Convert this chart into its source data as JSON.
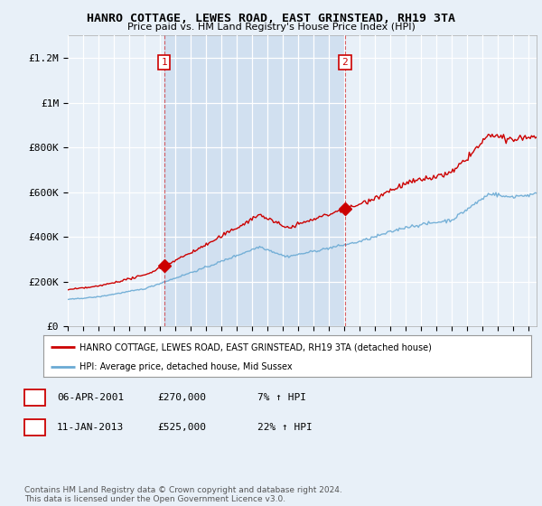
{
  "title": "HANRO COTTAGE, LEWES ROAD, EAST GRINSTEAD, RH19 3TA",
  "subtitle": "Price paid vs. HM Land Registry's House Price Index (HPI)",
  "bg_color": "#e8f0f8",
  "plot_bg_color": "#e8f0f8",
  "shade_color": "#ccdcee",
  "hpi_color": "#6aaad4",
  "price_color": "#cc0000",
  "dashed_line_color": "#cc0000",
  "ylim": [
    0,
    1300000
  ],
  "yticks": [
    0,
    200000,
    400000,
    600000,
    800000,
    1000000,
    1200000
  ],
  "ytick_labels": [
    "£0",
    "£200K",
    "£400K",
    "£600K",
    "£800K",
    "£1M",
    "£1.2M"
  ],
  "sale1_year": 2001.27,
  "sale1_price": 270000,
  "sale1_label": "1",
  "sale2_year": 2013.03,
  "sale2_price": 525000,
  "sale2_label": "2",
  "legend_line1": "HANRO COTTAGE, LEWES ROAD, EAST GRINSTEAD, RH19 3TA (detached house)",
  "legend_line2": "HPI: Average price, detached house, Mid Sussex",
  "table_row1": [
    "1",
    "06-APR-2001",
    "£270,000",
    "7% ↑ HPI"
  ],
  "table_row2": [
    "2",
    "11-JAN-2013",
    "£525,000",
    "22% ↑ HPI"
  ],
  "footnote": "Contains HM Land Registry data © Crown copyright and database right 2024.\nThis data is licensed under the Open Government Licence v3.0.",
  "xmin": 1995,
  "xmax": 2025.5
}
